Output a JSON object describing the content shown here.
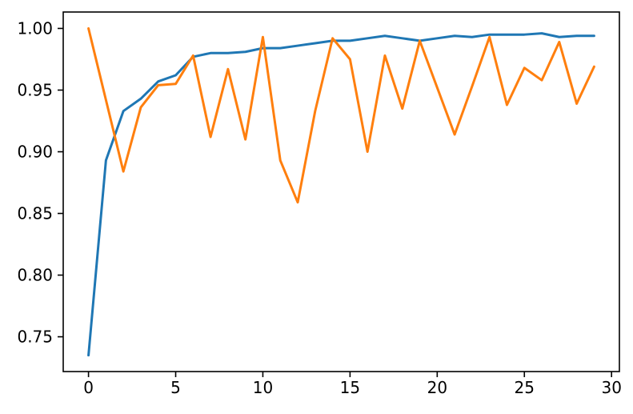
{
  "figure": {
    "background": "#ffffff"
  },
  "chart_data": {
    "type": "line",
    "title": "",
    "xlabel": "",
    "ylabel": "",
    "grid": false,
    "legend": null,
    "axis_color": "#000000",
    "tick_label_color": "#000000",
    "xlim": [
      -1.45,
      30.45
    ],
    "ylim": [
      0.7218,
      1.0133
    ],
    "x_tick_values": [
      0,
      5,
      10,
      15,
      20,
      25,
      30
    ],
    "x_tick_labels": [
      "0",
      "5",
      "10",
      "15",
      "20",
      "25",
      "30"
    ],
    "y_tick_values": [
      0.75,
      0.8,
      0.85,
      0.9,
      0.95,
      1.0
    ],
    "y_tick_labels": [
      "0.75",
      "0.80",
      "0.85",
      "0.90",
      "0.95",
      "1.00"
    ],
    "x": [
      0,
      1,
      2,
      3,
      4,
      5,
      6,
      7,
      8,
      9,
      10,
      11,
      12,
      13,
      14,
      15,
      16,
      17,
      18,
      19,
      20,
      21,
      22,
      23,
      24,
      25,
      26,
      27,
      28,
      29
    ],
    "series": [
      {
        "name": "blue-series",
        "color": "#1f77b4",
        "values": [
          0.735,
          0.893,
          0.933,
          0.943,
          0.957,
          0.962,
          0.977,
          0.98,
          0.98,
          0.981,
          0.984,
          0.984,
          0.986,
          0.988,
          0.99,
          0.99,
          0.992,
          0.994,
          0.992,
          0.99,
          0.992,
          0.994,
          0.993,
          0.995,
          0.995,
          0.995,
          0.996,
          0.993,
          0.994,
          0.994
        ]
      },
      {
        "name": "orange-series",
        "color": "#ff7f0e",
        "values": [
          1.0,
          0.942,
          0.884,
          0.936,
          0.954,
          0.955,
          0.978,
          0.912,
          0.967,
          0.91,
          0.993,
          0.893,
          0.859,
          0.933,
          0.992,
          0.975,
          0.9,
          0.978,
          0.935,
          0.99,
          0.952,
          0.914,
          0.953,
          0.993,
          0.938,
          0.968,
          0.958,
          0.989,
          0.939,
          0.969
        ]
      }
    ]
  }
}
